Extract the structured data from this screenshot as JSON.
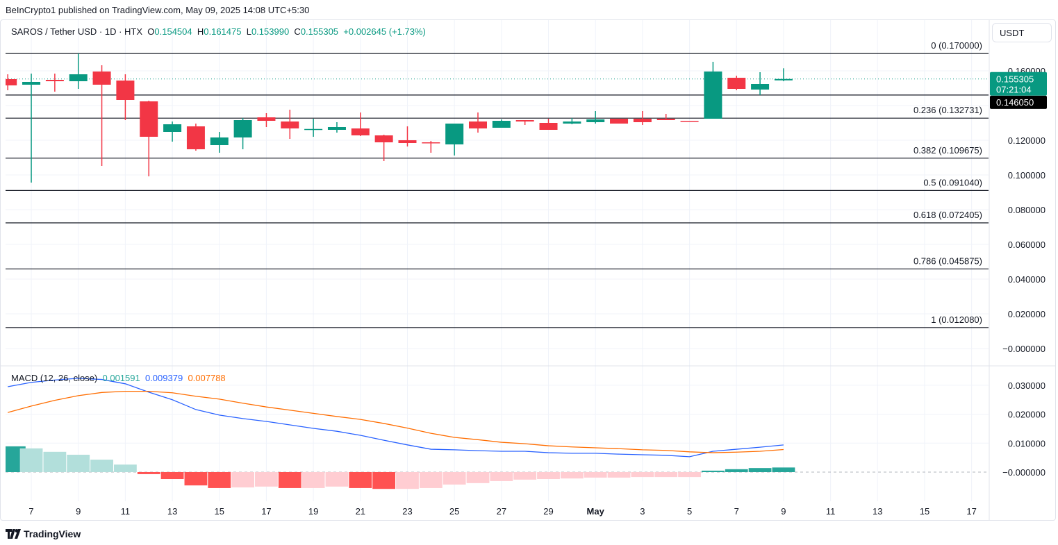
{
  "header": {
    "published": "BeInCrypto1 published on TradingView.com, May 09, 2025 14:08 UTC+5:30"
  },
  "legend": {
    "symbol": "SAROS / Tether USD · 1D · HTX",
    "open_label": "O",
    "open": "0.154504",
    "high_label": "H",
    "high": "0.161475",
    "low_label": "L",
    "low": "0.153990",
    "close_label": "C",
    "close": "0.155305",
    "change": "+0.002645 (+1.73%)"
  },
  "currency": "USDT",
  "price_labels": {
    "last_price": "0.155305",
    "countdown": "07:21:04",
    "line_price": "0.146050"
  },
  "macd_legend": {
    "title": "MACD (12, 26, close)",
    "histogram": "0.001591",
    "macd": "0.009379",
    "signal": "0.007788"
  },
  "brand": "TradingView",
  "colors": {
    "up": "#089981",
    "down": "#f23645",
    "macd": "#2962ff",
    "signal": "#ff6d00",
    "hist_up_strong": "#26a69a",
    "hist_up_weak": "#b2dfdb",
    "hist_down_strong": "#ff5252",
    "hist_down_weak": "#ffcdd2"
  },
  "chart_data": [
    {
      "type": "candlestick",
      "title": "SAROS / Tether USD · 1D · HTX",
      "x_tick_labels": [
        "7",
        "9",
        "11",
        "13",
        "15",
        "17",
        "19",
        "21",
        "23",
        "25",
        "27",
        "29",
        "May",
        "3",
        "5",
        "7",
        "9",
        "11",
        "13",
        "15",
        "17"
      ],
      "y_tick_labels": [
        "0.160000",
        "0.120000",
        "0.100000",
        "0.080000",
        "0.060000",
        "0.040000",
        "0.020000",
        "−0.000000"
      ],
      "ylim": [
        -0.008,
        0.186
      ],
      "dates": [
        "Apr 6",
        "Apr 7",
        "Apr 8",
        "Apr 9",
        "Apr 10",
        "Apr 11",
        "Apr 12",
        "Apr 13",
        "Apr 14",
        "Apr 15",
        "Apr 16",
        "Apr 17",
        "Apr 18",
        "Apr 19",
        "Apr 20",
        "Apr 21",
        "Apr 22",
        "Apr 23",
        "Apr 24",
        "Apr 25",
        "Apr 26",
        "Apr 27",
        "Apr 28",
        "Apr 29",
        "Apr 30",
        "May 1",
        "May 2",
        "May 3",
        "May 4",
        "May 5",
        "May 6",
        "May 7",
        "May 8",
        "May 9"
      ],
      "ohlc": [
        [
          0.1552,
          0.158,
          0.1488,
          0.1516
        ],
        [
          0.152,
          0.1584,
          0.0956,
          0.1536
        ],
        [
          0.1548,
          0.1584,
          0.148,
          0.154
        ],
        [
          0.154,
          0.17,
          0.1496,
          0.158
        ],
        [
          0.1596,
          0.1632,
          0.1052,
          0.152
        ],
        [
          0.1544,
          0.158,
          0.1316,
          0.1432
        ],
        [
          0.1424,
          0.1428,
          0.0992,
          0.122
        ],
        [
          0.1248,
          0.1308,
          0.1192,
          0.1292
        ],
        [
          0.128,
          0.1296,
          0.114,
          0.1148
        ],
        [
          0.1172,
          0.1248,
          0.1128,
          0.1216
        ],
        [
          0.1216,
          0.1328,
          0.1148,
          0.1316
        ],
        [
          0.1332,
          0.1356,
          0.1276,
          0.1312
        ],
        [
          0.1308,
          0.1376,
          0.1208,
          0.1268
        ],
        [
          0.1263,
          0.1324,
          0.122,
          0.1265
        ],
        [
          0.126,
          0.1304,
          0.1244,
          0.1276
        ],
        [
          0.1268,
          0.136,
          0.1224,
          0.1228
        ],
        [
          0.1228,
          0.1232,
          0.108,
          0.1188
        ],
        [
          0.12,
          0.128,
          0.1164,
          0.1184
        ],
        [
          0.1188,
          0.1196,
          0.1128,
          0.1184
        ],
        [
          0.1176,
          0.1296,
          0.1112,
          0.1296
        ],
        [
          0.1308,
          0.136,
          0.1244,
          0.1268
        ],
        [
          0.1272,
          0.132,
          0.1272,
          0.1312
        ],
        [
          0.1316,
          0.1316,
          0.1288,
          0.1308
        ],
        [
          0.13,
          0.1324,
          0.126,
          0.126
        ],
        [
          0.1296,
          0.1328,
          0.1292,
          0.1308
        ],
        [
          0.1304,
          0.1368,
          0.1296,
          0.132
        ],
        [
          0.1324,
          0.1324,
          0.1296,
          0.1296
        ],
        [
          0.1324,
          0.1368,
          0.1288,
          0.1304
        ],
        [
          0.1324,
          0.1352,
          0.1316,
          0.1316
        ],
        [
          0.1312,
          0.1312,
          0.1308,
          0.1308
        ],
        [
          0.1324,
          0.1652,
          0.1324,
          0.1596
        ],
        [
          0.156,
          0.1572,
          0.1488,
          0.1496
        ],
        [
          0.1492,
          0.1592,
          0.146,
          0.1524
        ],
        [
          0.154504,
          0.161475,
          0.15399,
          0.155305
        ]
      ],
      "fib_levels": [
        {
          "label": "0 (0.170000)",
          "value": 0.17
        },
        {
          "label": "0.236 (0.132731)",
          "value": 0.132731
        },
        {
          "label": "0.382 (0.109675)",
          "value": 0.109675
        },
        {
          "label": "0.5 (0.091040)",
          "value": 0.09104
        },
        {
          "label": "0.618 (0.072405)",
          "value": 0.072405
        },
        {
          "label": "0.786 (0.045875)",
          "value": 0.045875
        },
        {
          "label": "1 (0.012080)",
          "value": 0.01208
        }
      ],
      "horizontal_line": 0.14605,
      "last_price": 0.155305
    },
    {
      "type": "line+bar",
      "title": "MACD (12, 26, close)",
      "y_tick_labels": [
        "0.030000",
        "0.020000",
        "0.010000",
        "−0.000000"
      ],
      "ylim": [
        -0.0085,
        0.0355
      ],
      "series": [
        {
          "name": "MACD",
          "values": [
            0.0295,
            0.031,
            0.0318,
            0.0324,
            0.032,
            0.0305,
            0.0276,
            0.025,
            0.0216,
            0.0197,
            0.0185,
            0.0175,
            0.0163,
            0.0151,
            0.0141,
            0.0127,
            0.011,
            0.0094,
            0.0079,
            0.0077,
            0.0074,
            0.0072,
            0.0072,
            0.0067,
            0.0065,
            0.0065,
            0.0062,
            0.006,
            0.0058,
            0.0053,
            0.0072,
            0.0079,
            0.0086,
            0.009379
          ]
        },
        {
          "name": "Signal",
          "values": [
            0.0206,
            0.0228,
            0.0248,
            0.0264,
            0.0275,
            0.0279,
            0.0279,
            0.0274,
            0.0262,
            0.0252,
            0.0238,
            0.0225,
            0.0214,
            0.0203,
            0.0192,
            0.0182,
            0.0168,
            0.0152,
            0.0134,
            0.012,
            0.0112,
            0.0103,
            0.0098,
            0.0091,
            0.0087,
            0.0084,
            0.0081,
            0.0077,
            0.0075,
            0.007,
            0.0067,
            0.0069,
            0.0072,
            0.007788
          ]
        },
        {
          "name": "Histogram",
          "values": [
            0.0089,
            0.0082,
            0.007,
            0.006,
            0.0043,
            0.0026,
            -0.0007,
            -0.0024,
            -0.0046,
            -0.0055,
            -0.0053,
            -0.005,
            -0.0055,
            -0.0055,
            -0.005,
            -0.0055,
            -0.0058,
            -0.0058,
            -0.0055,
            -0.0043,
            -0.0038,
            -0.0031,
            -0.0026,
            -0.0024,
            -0.0022,
            -0.0019,
            -0.0019,
            -0.0017,
            -0.0017,
            -0.0017,
            0.0005,
            0.001,
            0.0014,
            0.001591
          ]
        }
      ]
    }
  ]
}
